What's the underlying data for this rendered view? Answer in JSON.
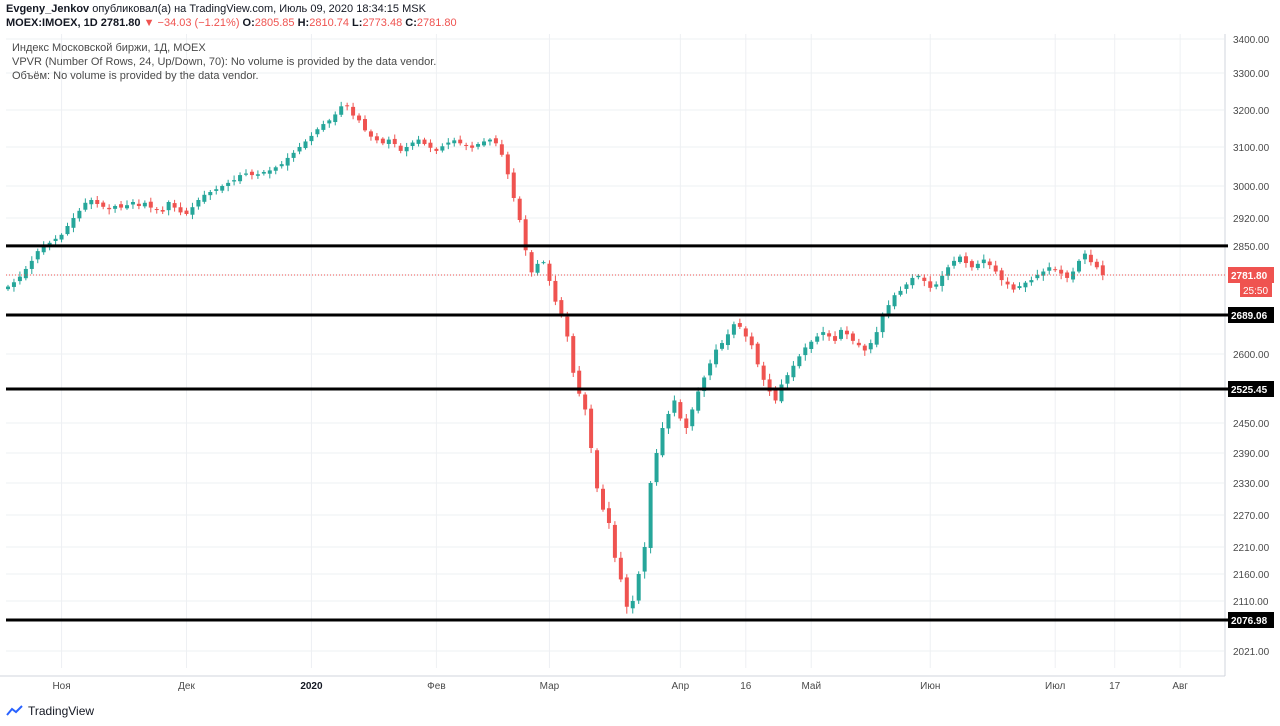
{
  "header": {
    "author": "Evgeny_Jenkov",
    "published": "опубликовал(а) на TradingView.com, Июль 09, 2020 18:34:15 MSK",
    "symbol": "MOEX:IMOEX, 1D",
    "last": "2781.80",
    "change": "−34.03 (−1.21%)",
    "o_label": "O:",
    "o_val": "2805.85",
    "h_label": "H:",
    "h_val": "2810.74",
    "l_label": "L:",
    "l_val": "2773.48",
    "c_label": "C:",
    "c_val": "2781.80"
  },
  "legend": {
    "title": "Индекс Московской биржи, 1Д, MOEX",
    "vpvr": "VPVR (Number Of Rows, 24, Up/Down, 70): No volume is provided by the data vendor.",
    "volume": "Объём: No volume is provided by the data vendor."
  },
  "footer": {
    "brand": "TradingView"
  },
  "colors": {
    "up": "#26a69a",
    "down": "#ef5350",
    "grid": "#eef0f3",
    "level": "#000000",
    "text": "#131722"
  },
  "chart_data": {
    "type": "candlestick",
    "title": "Индекс Московской биржи, 1Д, MOEX",
    "ylim": [
      1960,
      3420
    ],
    "y_ticks": [
      "3400.00",
      "3300.00",
      "3200.00",
      "3100.00",
      "3000.00",
      "2920.00",
      "2850.00",
      "2781.80",
      "2689.06",
      "2600.00",
      "2525.45",
      "2450.00",
      "2390.00",
      "2330.00",
      "2270.00",
      "2210.00",
      "2160.00",
      "2110.00",
      "2076.98",
      "2021.00"
    ],
    "y_tick_values": [
      3400,
      3300,
      3200,
      3100,
      3000,
      2920,
      2850,
      2781.8,
      2689.06,
      2600,
      2525.45,
      2450,
      2390,
      2330,
      2270,
      2210,
      2160,
      2110,
      2076.98,
      2021
    ],
    "x_labels": [
      {
        "label": "Ноя",
        "index": 9
      },
      {
        "label": "Дек",
        "index": 30
      },
      {
        "label": "2020",
        "index": 51
      },
      {
        "label": "Фев",
        "index": 72
      },
      {
        "label": "Мар",
        "index": 91
      },
      {
        "label": "Апр",
        "index": 113
      },
      {
        "label": "16",
        "index": 124
      },
      {
        "label": "Май",
        "index": 135
      },
      {
        "label": "Июн",
        "index": 155
      },
      {
        "label": "Июл",
        "index": 176
      },
      {
        "label": "17",
        "index": 186
      },
      {
        "label": "Авг",
        "index": 197
      }
    ],
    "horizontal_levels": [
      2850.24,
      2689.06,
      2525.45,
      2076.98
    ],
    "last_price": "2781.80",
    "countdown": "25:50",
    "closes": [
      2755,
      2765,
      2778,
      2796,
      2815,
      2838,
      2852,
      2858,
      2868,
      2878,
      2900,
      2920,
      2938,
      2958,
      2965,
      2955,
      2948,
      2942,
      2950,
      2946,
      2952,
      2960,
      2950,
      2958,
      2946,
      2940,
      2936,
      2960,
      2946,
      2934,
      2930,
      2947,
      2965,
      2978,
      2985,
      2992,
      3000,
      3008,
      3015,
      3028,
      3032,
      3028,
      3030,
      3036,
      3040,
      3048,
      3056,
      3072,
      3085,
      3100,
      3115,
      3130,
      3148,
      3162,
      3172,
      3188,
      3210,
      3212,
      3185,
      3172,
      3145,
      3128,
      3118,
      3110,
      3120,
      3108,
      3090,
      3100,
      3112,
      3120,
      3108,
      3098,
      3090,
      3102,
      3112,
      3118,
      3110,
      3105,
      3098,
      3108,
      3115,
      3120,
      3110,
      3080,
      3030,
      2970,
      2915,
      2840,
      2788,
      2808,
      2812,
      2768,
      2720,
      2688,
      2640,
      2560,
      2515,
      2480,
      2400,
      2320,
      2280,
      2255,
      2190,
      2150,
      2100,
      2110,
      2160,
      2210,
      2330,
      2390,
      2440,
      2470,
      2500,
      2460,
      2440,
      2480,
      2520,
      2550,
      2580,
      2610,
      2625,
      2645,
      2668,
      2662,
      2640,
      2620,
      2578,
      2545,
      2520,
      2500,
      2535,
      2555,
      2575,
      2595,
      2615,
      2628,
      2640,
      2650,
      2640,
      2630,
      2655,
      2645,
      2630,
      2620,
      2608,
      2625,
      2650,
      2688,
      2712,
      2735,
      2745,
      2760,
      2775,
      2780,
      2768,
      2752,
      2760,
      2780,
      2800,
      2815,
      2825,
      2810,
      2800,
      2808,
      2818,
      2805,
      2790,
      2770,
      2760,
      2748,
      2756,
      2764,
      2770,
      2782,
      2790,
      2800,
      2795,
      2785,
      2775,
      2790,
      2815,
      2832,
      2812,
      2800,
      2781.8
    ]
  }
}
